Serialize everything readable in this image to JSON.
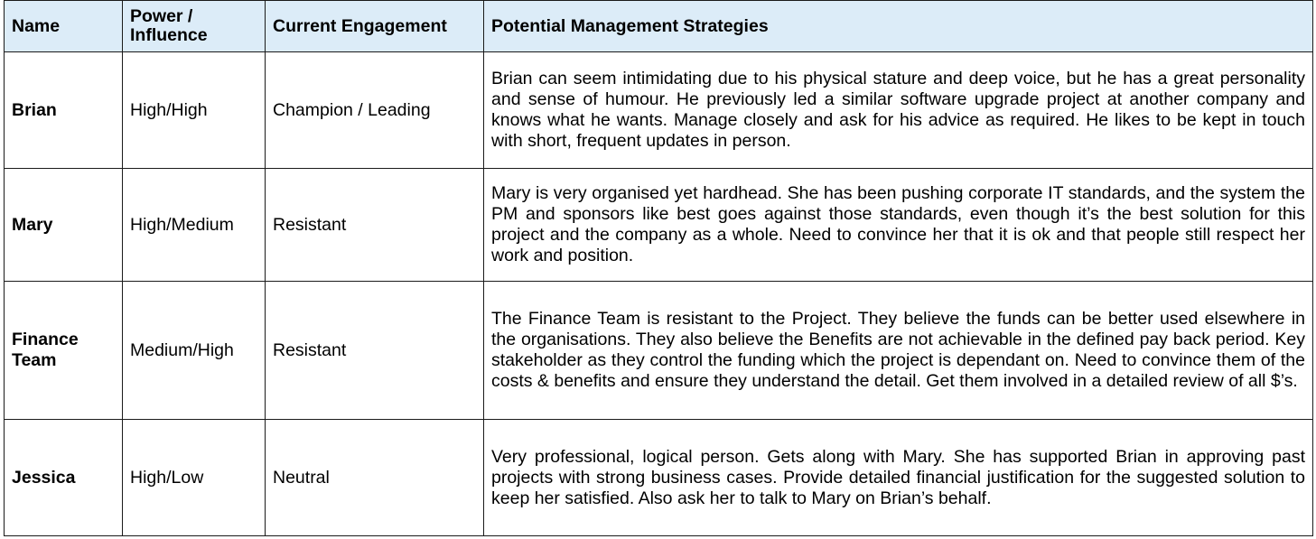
{
  "headers": {
    "name": "Name",
    "power": "Power / Influence",
    "engagement": "Current Engagement",
    "strategies": "Potential Management Strategies"
  },
  "rows": [
    {
      "name": "Brian",
      "power": "High/High",
      "engagement": "Champion / Leading",
      "strategy": "Brian can seem intimidating due to his physical stature and deep voice, but he has a great personality and sense of humour. He previously led a similar software upgrade project at another company and knows what he wants. Manage closely and ask for his advice as required. He likes to be kept in touch with short, frequent updates in person."
    },
    {
      "name": "Mary",
      "power": "High/Medium",
      "engagement": "Resistant",
      "strategy": "Mary is very organised yet hardhead. She has been pushing corporate IT standards, and the system the PM and sponsors like best goes against those standards, even though it’s the best solution for this project and the company as a whole. Need to convince her that it is ok and that people still respect her work and position."
    },
    {
      "name": "Finance Team",
      "power": "Medium/High",
      "engagement": "Resistant",
      "strategy": "The Finance Team is resistant to the Project. They believe the funds can be better used elsewhere in the organisations. They also believe the Benefits are not achievable in the defined pay back period. Key stakeholder as they control the funding which the project is dependant on. Need to convince them of the costs & benefits and ensure they understand the detail. Get them involved in a detailed review of all $’s."
    },
    {
      "name": "Jessica",
      "power": "High/Low",
      "engagement": "Neutral",
      "strategy": "Very professional, logical person. Gets along with Mary. She has supported Brian in approving past projects with strong business cases. Provide detailed financial justification for the suggested solution to keep her satisfied. Also ask her to talk to Mary on Brian’s behalf."
    }
  ],
  "colors": {
    "header_background": "#dcecf8",
    "border": "#1a1a1a"
  }
}
